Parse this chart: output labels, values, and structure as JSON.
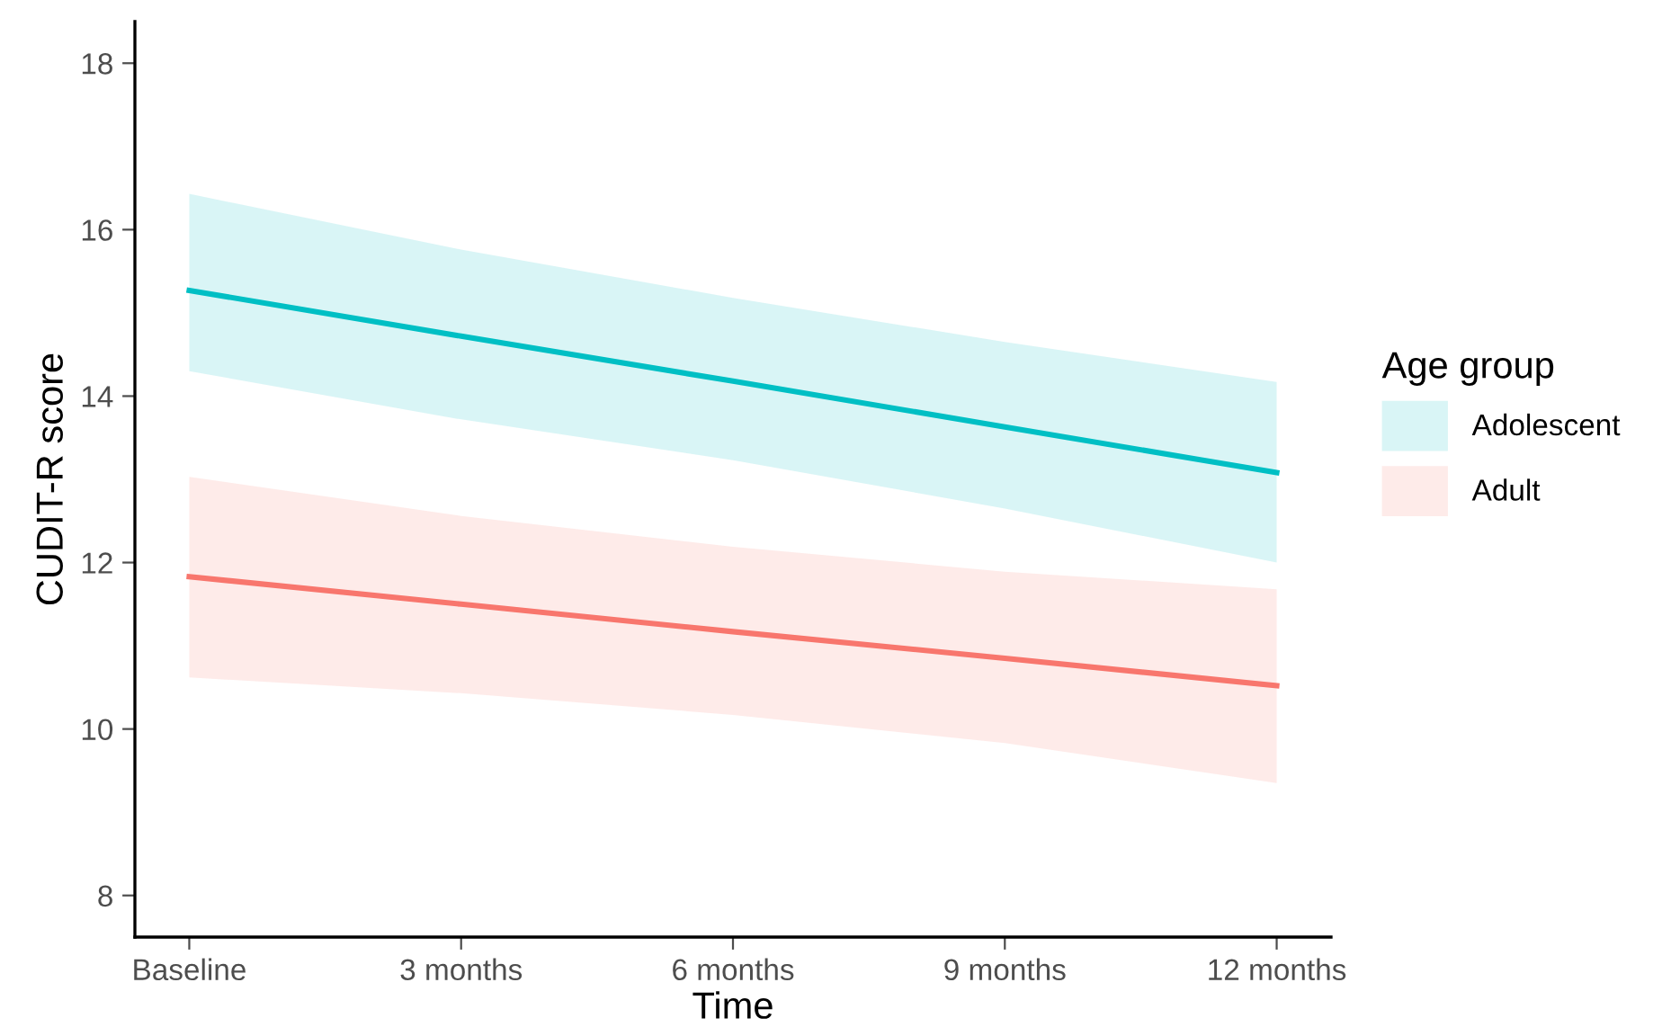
{
  "chart_data": {
    "type": "line",
    "xlabel": "Time",
    "ylabel": "CUDIT-R score",
    "legend_title": "Age group",
    "legend": "right",
    "grid": false,
    "marker": "none",
    "line_style": "solid",
    "categories": [
      "Baseline",
      "3 months",
      "6 months",
      "9 months",
      "12 months"
    ],
    "ylim": [
      7.5,
      18.5
    ],
    "yticks": [
      8,
      10,
      12,
      14,
      16,
      18
    ],
    "series": [
      {
        "name": "Adolescent",
        "color": "#00bfc4",
        "values": [
          15.27,
          14.72,
          14.18,
          13.63,
          13.08
        ],
        "lower": [
          14.3,
          13.72,
          13.23,
          12.65,
          12.0
        ],
        "upper": [
          16.43,
          15.76,
          15.18,
          14.65,
          14.17
        ]
      },
      {
        "name": "Adult",
        "color": "#f8766d",
        "values": [
          11.83,
          11.5,
          11.17,
          10.85,
          10.52
        ],
        "lower": [
          10.62,
          10.43,
          10.17,
          9.83,
          9.35
        ],
        "upper": [
          13.03,
          12.56,
          12.19,
          11.89,
          11.68
        ]
      }
    ]
  }
}
